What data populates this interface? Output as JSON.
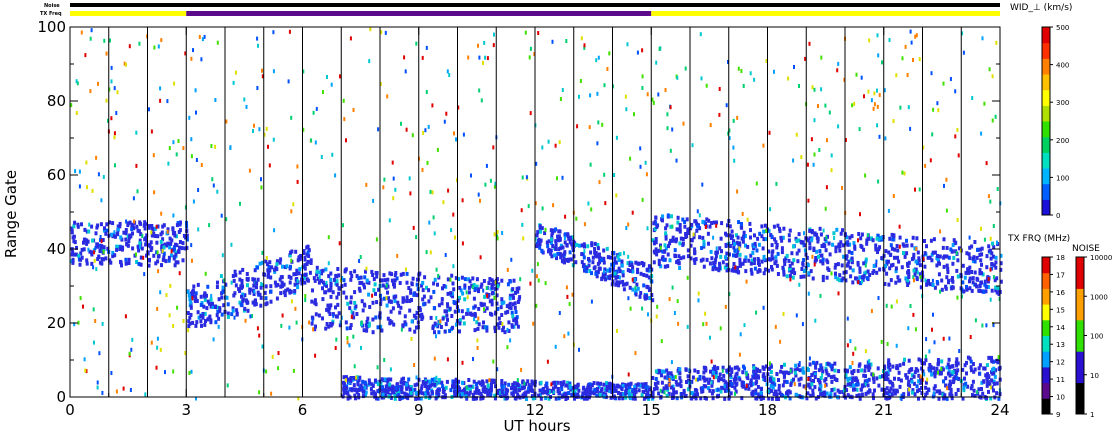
{
  "chart_data": {
    "type": "heatmap",
    "title": "",
    "xlabel": "UT hours",
    "ylabel": "Range Gate",
    "xlim": [
      0,
      24
    ],
    "ylim": [
      0,
      100
    ],
    "x_ticks": [
      "0",
      "3",
      "6",
      "9",
      "12",
      "15",
      "18",
      "21",
      "24"
    ],
    "y_ticks": [
      "0",
      "20",
      "40",
      "60",
      "80",
      "100"
    ],
    "vertical_gridlines_hours": [
      1,
      2,
      3,
      4,
      5,
      6,
      7,
      8,
      9,
      10,
      11,
      12,
      13,
      14,
      15,
      16,
      17,
      18,
      19,
      20,
      21,
      22,
      23
    ],
    "status_bars": {
      "noise_label": "Noise",
      "txfreq_label": "TX Freq",
      "noise_segments": [
        {
          "start": 0,
          "end": 24,
          "color": "#000000"
        }
      ],
      "txfreq_segments": [
        {
          "start": 0,
          "end": 3,
          "color": "#ffff00"
        },
        {
          "start": 3,
          "end": 15,
          "color": "#5a0a8a"
        },
        {
          "start": 15,
          "end": 24,
          "color": "#ffff00"
        }
      ]
    },
    "scatter_bands": [
      {
        "name": "band-a",
        "t0": 0.0,
        "t1": 3.0,
        "g0": 36,
        "g1": 48,
        "t_end_g0": 36,
        "t_end_g1": 48
      },
      {
        "name": "band-b",
        "t0": 3.0,
        "t1": 6.2,
        "g0": 18,
        "g1": 30,
        "t_end_g0": 30,
        "t_end_g1": 42
      },
      {
        "name": "band-c",
        "t0": 6.2,
        "t1": 11.6,
        "g0": 18,
        "g1": 36,
        "t_end_g0": 18,
        "t_end_g1": 32
      },
      {
        "name": "band-d",
        "t0": 12.0,
        "t1": 15.0,
        "g0": 40,
        "g1": 48,
        "t_end_g0": 26,
        "t_end_g1": 36
      },
      {
        "name": "band-e",
        "t0": 15.0,
        "t1": 24.0,
        "g0": 36,
        "g1": 50,
        "t_end_g0": 28,
        "t_end_g1": 42
      },
      {
        "name": "band-f",
        "t0": 7.0,
        "t1": 15.0,
        "g0": 0,
        "g1": 6,
        "t_end_g0": 0,
        "t_end_g1": 4
      },
      {
        "name": "band-g",
        "t0": 15.0,
        "t1": 24.0,
        "g0": 0,
        "g1": 8,
        "t_end_g0": 0,
        "t_end_g1": 12
      }
    ],
    "colorbars": [
      {
        "name": "width",
        "title": "WID_⊥ (km/s)",
        "ticks": [
          "0",
          "100",
          "200",
          "300",
          "400",
          "500"
        ],
        "colors": [
          "#1b10d8",
          "#0060ff",
          "#00b4ff",
          "#00e0c0",
          "#00d060",
          "#30e000",
          "#b0e000",
          "#ffff00",
          "#ffc000",
          "#ff8000",
          "#ff3000",
          "#e00000"
        ]
      },
      {
        "name": "txfreq",
        "title": "TX FRQ (MHz)",
        "ticks": [
          "9",
          "10",
          "11",
          "12",
          "13",
          "14",
          "15",
          "16",
          "17",
          "18"
        ],
        "colors": [
          "#000000",
          "#5a0a8a",
          "#2a10d0",
          "#00a0ff",
          "#00e0c0",
          "#30e000",
          "#ffff00",
          "#ffa000",
          "#ff6000",
          "#e00000"
        ]
      },
      {
        "name": "noise",
        "title": "NOISE",
        "ticks": [
          "1",
          "10",
          "100",
          "1000",
          "10000"
        ],
        "colors": [
          "#000000",
          "#2a10d0",
          "#30e000",
          "#ffa000",
          "#e00000"
        ]
      }
    ],
    "palette": {
      "scatter_main": "#2a2ae0",
      "scatter_alt": [
        "#0050ff",
        "#00a0ff",
        "#00c8d0",
        "#00d070",
        "#40e000",
        "#e0e000",
        "#ff8000",
        "#e00000"
      ]
    }
  }
}
